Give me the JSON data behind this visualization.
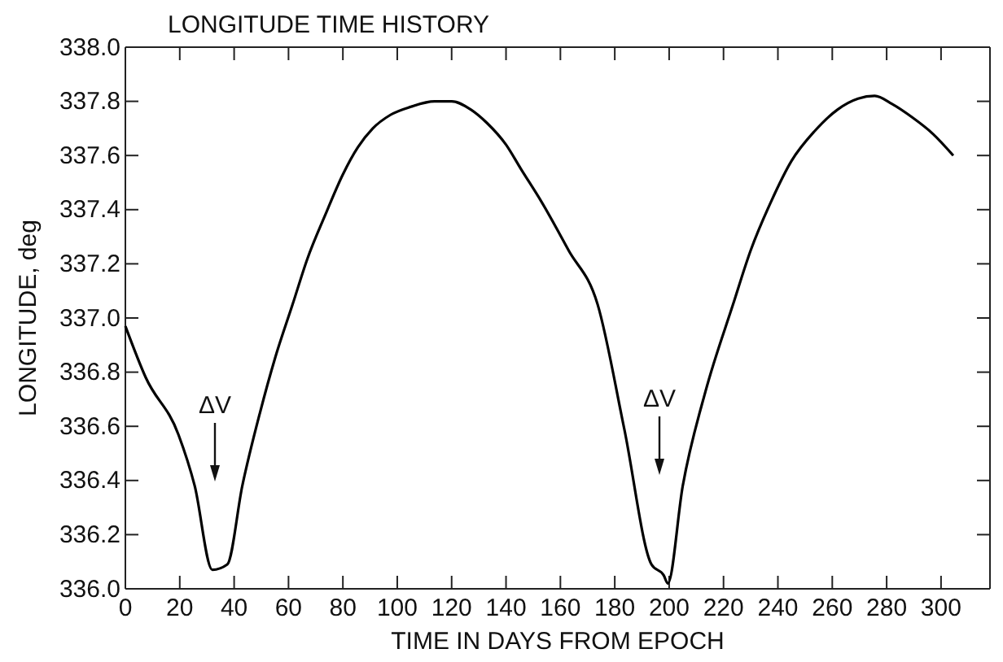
{
  "chart_data": {
    "type": "line",
    "title": "LONGITUDE TIME HISTORY",
    "xlabel": "TIME IN DAYS FROM EPOCH",
    "ylabel": "LONGITUDE, deg",
    "xlim": [
      0,
      318
    ],
    "xticks": [
      0,
      20,
      40,
      60,
      80,
      100,
      120,
      140,
      160,
      180,
      200,
      220,
      240,
      260,
      280,
      300
    ],
    "ylim": [
      336.0,
      338.0
    ],
    "yticks": [
      {
        "value": 336.0,
        "label": "336.0"
      },
      {
        "value": 336.2,
        "label": "336.2"
      },
      {
        "value": 336.4,
        "label": "336.4"
      },
      {
        "value": 336.6,
        "label": "336.6"
      },
      {
        "value": 336.8,
        "label": "336.8"
      },
      {
        "value": 337.0,
        "label": "337.0"
      },
      {
        "value": 337.2,
        "label": "337.2"
      },
      {
        "value": 337.4,
        "label": "337.4"
      },
      {
        "value": 337.6,
        "label": "337.6"
      },
      {
        "value": 337.8,
        "label": "337.8"
      },
      {
        "value": 338.0,
        "label": "338.0"
      }
    ],
    "grid": false,
    "marker": "none",
    "line_style": "solid",
    "series": [
      {
        "color": "#000000",
        "x": [
          0,
          7.5,
          19.5,
          25.5,
          32,
          37.5,
          43,
          49.5,
          55,
          61.5,
          67,
          73.5,
          80,
          85.5,
          91,
          97.5,
          105,
          113.7,
          120,
          127,
          133,
          140,
          145.5,
          153,
          163,
          173.7,
          183.5,
          193.5,
          198,
          199.5,
          205,
          213.4,
          223.5,
          230,
          237.5,
          245,
          253.5,
          262,
          269.5,
          275.6,
          282,
          289.5,
          297,
          304.5
        ],
        "values": [
          336.97,
          336.78,
          336.57,
          336.38,
          336.07,
          336.09,
          336.38,
          336.65,
          336.85,
          337.05,
          337.22,
          337.38,
          337.53,
          337.63,
          337.7,
          337.75,
          337.78,
          337.8,
          337.8,
          337.77,
          337.72,
          337.64,
          337.55,
          337.43,
          337.25,
          337.05,
          336.59,
          336.09,
          336.05,
          336.02,
          336.38,
          336.73,
          337.05,
          337.25,
          337.43,
          337.58,
          337.69,
          337.77,
          337.81,
          337.82,
          337.79,
          337.74,
          337.68,
          337.6
        ]
      }
    ],
    "annotations": [
      "ΔV",
      "ΔV"
    ]
  }
}
